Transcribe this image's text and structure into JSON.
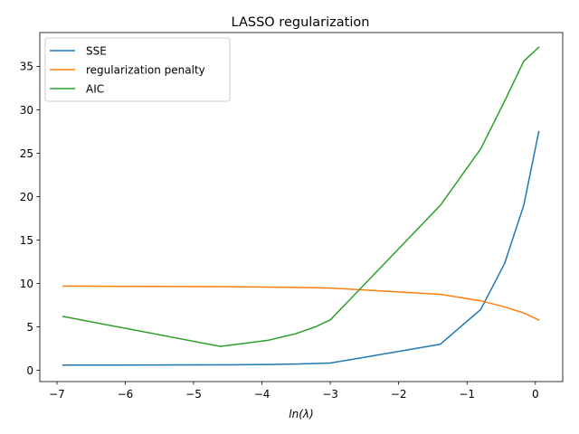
{
  "chart_data": {
    "type": "line",
    "title": "LASSO regularization",
    "xlabel": "ln(λ)",
    "ylabel": "",
    "xlim": [
      -7.25,
      0.4
    ],
    "ylim": [
      -1.3,
      38.9
    ],
    "xticks": [
      -7,
      -6,
      -5,
      -4,
      -3,
      -2,
      -1,
      0
    ],
    "xtick_labels": [
      "−7",
      "−6",
      "−5",
      "−4",
      "−3",
      "−2",
      "−1",
      "0"
    ],
    "yticks": [
      0,
      5,
      10,
      15,
      20,
      25,
      30,
      35
    ],
    "ytick_labels": [
      "0",
      "5",
      "10",
      "15",
      "20",
      "25",
      "30",
      "35"
    ],
    "grid": false,
    "legend_position": "upper-left",
    "series": [
      {
        "name": "SSE",
        "color": "#1f77b4",
        "x": [
          -6.91,
          -4.61,
          -3.91,
          -3.51,
          -3.22,
          -3.0,
          -1.39,
          -0.8,
          -0.45,
          -0.17,
          0.05
        ],
        "y": [
          0.6,
          0.62,
          0.66,
          0.72,
          0.78,
          0.83,
          3.0,
          7.0,
          12.3,
          19.0,
          27.5
        ]
      },
      {
        "name": "regularization penalty",
        "color": "#ff7f0e",
        "x": [
          -6.91,
          -4.61,
          -3.91,
          -3.51,
          -3.22,
          -3.0,
          -1.39,
          -0.8,
          -0.45,
          -0.17,
          0.05
        ],
        "y": [
          9.7,
          9.63,
          9.58,
          9.54,
          9.5,
          9.47,
          8.75,
          8.0,
          7.3,
          6.6,
          5.8
        ]
      },
      {
        "name": "AIC",
        "color": "#2ca02c",
        "x": [
          -6.91,
          -4.61,
          -3.91,
          -3.51,
          -3.22,
          -3.0,
          -1.39,
          -0.8,
          -0.45,
          -0.17,
          0.05
        ],
        "y": [
          6.2,
          2.75,
          3.45,
          4.2,
          5.0,
          5.8,
          19.0,
          25.5,
          31.0,
          35.6,
          37.2
        ]
      }
    ]
  }
}
